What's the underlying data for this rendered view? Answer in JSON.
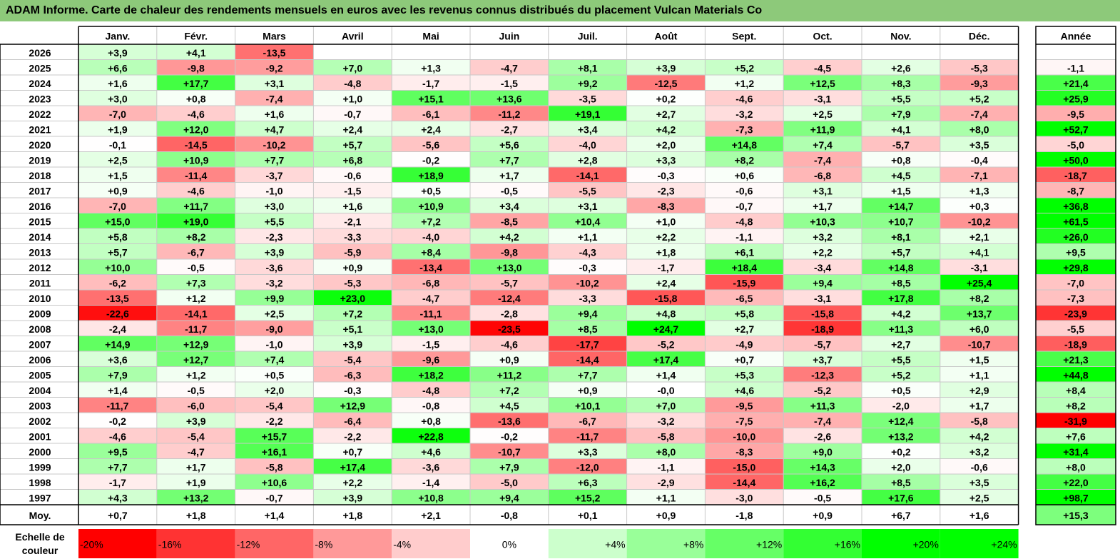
{
  "title": "ADAM Informe. Carte de chaleur des rendements mensuels en euros avec les revenus connus distribués du placement Vulcan Materials Co",
  "chart_data": {
    "type": "heatmap",
    "title": "ADAM Informe. Carte de chaleur des rendements mensuels en euros avec les revenus connus distribués du placement Vulcan Materials Co",
    "columns": [
      "Janv.",
      "Févr.",
      "Mars",
      "Avril",
      "Mai",
      "Juin",
      "Juil.",
      "Août",
      "Sept.",
      "Oct.",
      "Nov.",
      "Déc."
    ],
    "year_column_label": "Année",
    "average_row_label": "Moy.",
    "rows": [
      {
        "year": "2026",
        "values": [
          "+3,9",
          "+4,1",
          "-13,5",
          "",
          "",
          "",
          "",
          "",
          "",
          "",
          "",
          ""
        ],
        "annual": ""
      },
      {
        "year": "2025",
        "values": [
          "+6,6",
          "-9,8",
          "-9,2",
          "+7,0",
          "+1,3",
          "-4,7",
          "+8,1",
          "+3,9",
          "+5,2",
          "-4,5",
          "+2,6",
          "-5,3"
        ],
        "annual": "-1,1"
      },
      {
        "year": "2024",
        "values": [
          "+1,6",
          "+17,7",
          "+3,1",
          "-4,8",
          "-1,7",
          "-1,5",
          "+9,2",
          "-12,5",
          "+1,2",
          "+12,5",
          "+8,3",
          "-9,3"
        ],
        "annual": "+21,4"
      },
      {
        "year": "2023",
        "values": [
          "+3,0",
          "+0,8",
          "-7,4",
          "+1,0",
          "+15,1",
          "+13,6",
          "-3,5",
          "+0,2",
          "-4,6",
          "-3,1",
          "+5,5",
          "+5,2"
        ],
        "annual": "+25,9"
      },
      {
        "year": "2022",
        "values": [
          "-7,0",
          "-4,6",
          "+1,6",
          "-0,7",
          "-6,1",
          "-11,2",
          "+19,1",
          "+2,7",
          "-3,2",
          "+2,5",
          "+7,9",
          "-7,4"
        ],
        "annual": "-9,5"
      },
      {
        "year": "2021",
        "values": [
          "+1,9",
          "+12,0",
          "+4,7",
          "+2,4",
          "+2,4",
          "-2,7",
          "+3,4",
          "+4,2",
          "-7,3",
          "+11,9",
          "+4,1",
          "+8,0"
        ],
        "annual": "+52,7"
      },
      {
        "year": "2020",
        "values": [
          "-0,1",
          "-14,5",
          "-10,2",
          "+5,7",
          "-5,6",
          "+5,6",
          "-4,0",
          "+2,0",
          "+14,8",
          "+7,4",
          "-5,7",
          "+3,5"
        ],
        "annual": "-5,0"
      },
      {
        "year": "2019",
        "values": [
          "+2,5",
          "+10,9",
          "+7,7",
          "+6,8",
          "-0,2",
          "+7,7",
          "+2,8",
          "+3,3",
          "+8,2",
          "-7,4",
          "+0,8",
          "-0,4"
        ],
        "annual": "+50,0"
      },
      {
        "year": "2018",
        "values": [
          "+1,5",
          "-11,4",
          "-3,7",
          "-0,6",
          "+18,9",
          "+1,7",
          "-14,1",
          "-0,3",
          "+0,6",
          "-6,8",
          "+4,5",
          "-7,1"
        ],
        "annual": "-18,7"
      },
      {
        "year": "2017",
        "values": [
          "+0,9",
          "-4,6",
          "-1,0",
          "-1,5",
          "+0,5",
          "-0,5",
          "-5,5",
          "-2,3",
          "-0,6",
          "+3,1",
          "+1,5",
          "+1,3"
        ],
        "annual": "-8,7"
      },
      {
        "year": "2016",
        "values": [
          "-7,0",
          "+11,7",
          "+3,0",
          "+1,6",
          "+10,9",
          "+3,4",
          "+3,1",
          "-8,3",
          "-0,7",
          "+1,7",
          "+14,7",
          "+0,3"
        ],
        "annual": "+36,8"
      },
      {
        "year": "2015",
        "values": [
          "+15,0",
          "+19,0",
          "+5,5",
          "-2,1",
          "+7,2",
          "-8,5",
          "+10,4",
          "+1,0",
          "-4,8",
          "+10,3",
          "+10,7",
          "-10,2"
        ],
        "annual": "+61,5"
      },
      {
        "year": "2014",
        "values": [
          "+5,8",
          "+8,2",
          "-2,3",
          "-3,3",
          "-4,0",
          "+4,2",
          "+1,1",
          "+2,2",
          "-1,1",
          "+3,2",
          "+8,1",
          "+2,1"
        ],
        "annual": "+26,0"
      },
      {
        "year": "2013",
        "values": [
          "+5,7",
          "-6,7",
          "+3,9",
          "-5,9",
          "+8,4",
          "-9,8",
          "-4,3",
          "+1,8",
          "+6,1",
          "+2,2",
          "+5,7",
          "+4,1"
        ],
        "annual": "+9,5"
      },
      {
        "year": "2012",
        "values": [
          "+10,0",
          "-0,5",
          "-3,6",
          "+0,9",
          "-13,4",
          "+13,0",
          "-0,3",
          "-1,7",
          "+18,4",
          "-3,4",
          "+14,8",
          "-3,1"
        ],
        "annual": "+29,8"
      },
      {
        "year": "2011",
        "values": [
          "-6,2",
          "+7,3",
          "-3,2",
          "-5,3",
          "-6,8",
          "-5,7",
          "-10,2",
          "+2,4",
          "-15,9",
          "+9,4",
          "+8,5",
          "+25,4"
        ],
        "annual": "-7,0"
      },
      {
        "year": "2010",
        "values": [
          "-13,5",
          "+1,2",
          "+9,9",
          "+23,0",
          "-4,7",
          "-12,4",
          "-3,3",
          "-15,8",
          "-6,5",
          "-3,1",
          "+17,8",
          "+8,2"
        ],
        "annual": "-7,3"
      },
      {
        "year": "2009",
        "values": [
          "-22,6",
          "-14,1",
          "+2,5",
          "+7,2",
          "-11,1",
          "-2,8",
          "+9,4",
          "+4,8",
          "+5,8",
          "-15,8",
          "+4,2",
          "+13,7"
        ],
        "annual": "-23,9"
      },
      {
        "year": "2008",
        "values": [
          "-2,4",
          "-11,7",
          "-9,0",
          "+5,1",
          "+13,0",
          "-23,5",
          "+8,5",
          "+24,7",
          "+2,7",
          "-18,9",
          "+11,3",
          "+6,0"
        ],
        "annual": "-5,5"
      },
      {
        "year": "2007",
        "values": [
          "+14,9",
          "+12,9",
          "-1,0",
          "+3,9",
          "-1,5",
          "-4,6",
          "-17,7",
          "-5,2",
          "-4,9",
          "-5,7",
          "+2,7",
          "-10,7"
        ],
        "annual": "-18,9"
      },
      {
        "year": "2006",
        "values": [
          "+3,6",
          "+12,7",
          "+7,4",
          "-5,4",
          "-9,6",
          "+0,9",
          "-14,4",
          "+17,4",
          "+0,7",
          "+3,7",
          "+5,5",
          "+1,5"
        ],
        "annual": "+21,3"
      },
      {
        "year": "2005",
        "values": [
          "+7,9",
          "+1,2",
          "+0,5",
          "-6,3",
          "+18,2",
          "+11,2",
          "+7,7",
          "+1,4",
          "+5,3",
          "-12,3",
          "+5,2",
          "+1,1"
        ],
        "annual": "+44,8"
      },
      {
        "year": "2004",
        "values": [
          "+1,4",
          "-0,5",
          "+2,0",
          "-0,3",
          "-4,8",
          "+7,2",
          "+0,9",
          "-0,0",
          "+4,6",
          "-5,2",
          "+0,5",
          "+2,9"
        ],
        "annual": "+8,4"
      },
      {
        "year": "2003",
        "values": [
          "-11,7",
          "-6,0",
          "-5,4",
          "+12,9",
          "-0,8",
          "+4,5",
          "+10,1",
          "+7,0",
          "-9,5",
          "+11,3",
          "-2,0",
          "+1,7"
        ],
        "annual": "+8,2"
      },
      {
        "year": "2002",
        "values": [
          "-0,2",
          "+3,9",
          "-2,2",
          "-6,4",
          "+0,8",
          "-13,6",
          "-6,7",
          "-3,2",
          "-7,5",
          "-7,4",
          "+12,4",
          "-5,8"
        ],
        "annual": "-31,9"
      },
      {
        "year": "2001",
        "values": [
          "-4,6",
          "-5,4",
          "+15,7",
          "-2,2",
          "+22,8",
          "-0,2",
          "-11,7",
          "-5,8",
          "-10,0",
          "-2,6",
          "+13,2",
          "+4,2"
        ],
        "annual": "+7,6"
      },
      {
        "year": "2000",
        "values": [
          "+9,5",
          "-4,7",
          "+16,1",
          "+0,7",
          "+4,6",
          "-10,7",
          "+3,3",
          "+8,0",
          "-8,3",
          "+9,0",
          "+0,2",
          "+3,2"
        ],
        "annual": "+31,4"
      },
      {
        "year": "1999",
        "values": [
          "+7,7",
          "+1,7",
          "-5,8",
          "+17,4",
          "-3,6",
          "+7,9",
          "-12,0",
          "-1,1",
          "-15,0",
          "+14,3",
          "+2,0",
          "-0,6"
        ],
        "annual": "+8,0"
      },
      {
        "year": "1998",
        "values": [
          "-1,7",
          "+1,9",
          "+10,6",
          "+2,2",
          "-1,4",
          "-5,0",
          "+6,3",
          "-2,9",
          "-14,4",
          "+16,2",
          "+8,5",
          "+3,5"
        ],
        "annual": "+22,0"
      },
      {
        "year": "1997",
        "values": [
          "+4,3",
          "+13,2",
          "-0,7",
          "+3,9",
          "+10,8",
          "+9,4",
          "+15,2",
          "+1,1",
          "-3,0",
          "-0,5",
          "+17,6",
          "+2,5"
        ],
        "annual": "+98,7"
      }
    ],
    "average": {
      "values": [
        "+0,7",
        "+1,8",
        "+1,4",
        "+1,8",
        "+2,1",
        "-0,8",
        "+0,1",
        "+0,9",
        "-1,8",
        "+0,9",
        "+6,7",
        "+1,6"
      ],
      "annual": "+15,3"
    },
    "scale_label": [
      "Echelle de",
      "couleur"
    ],
    "scale": [
      "-20%",
      "-16%",
      "-12%",
      "-8%",
      "-4%",
      "0%",
      "+4%",
      "+8%",
      "+12%",
      "+16%",
      "+20%",
      "+24%"
    ],
    "colors": {
      "title_bg": "#8dc97a",
      "negative_max": "#ff0000",
      "neutral": "#ffffff",
      "positive_max": "#00ff00",
      "grid": "#c8c8c8",
      "border": "#000000"
    }
  }
}
